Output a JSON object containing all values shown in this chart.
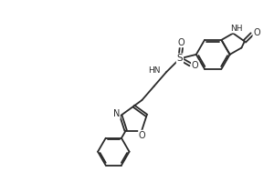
{
  "bg_color": "#ffffff",
  "line_color": "#2a2a2a",
  "lw": 1.3,
  "xlim": [
    0,
    10
  ],
  "ylim": [
    0,
    6.5
  ],
  "figsize": [
    3.0,
    2.0
  ],
  "dpi": 100
}
